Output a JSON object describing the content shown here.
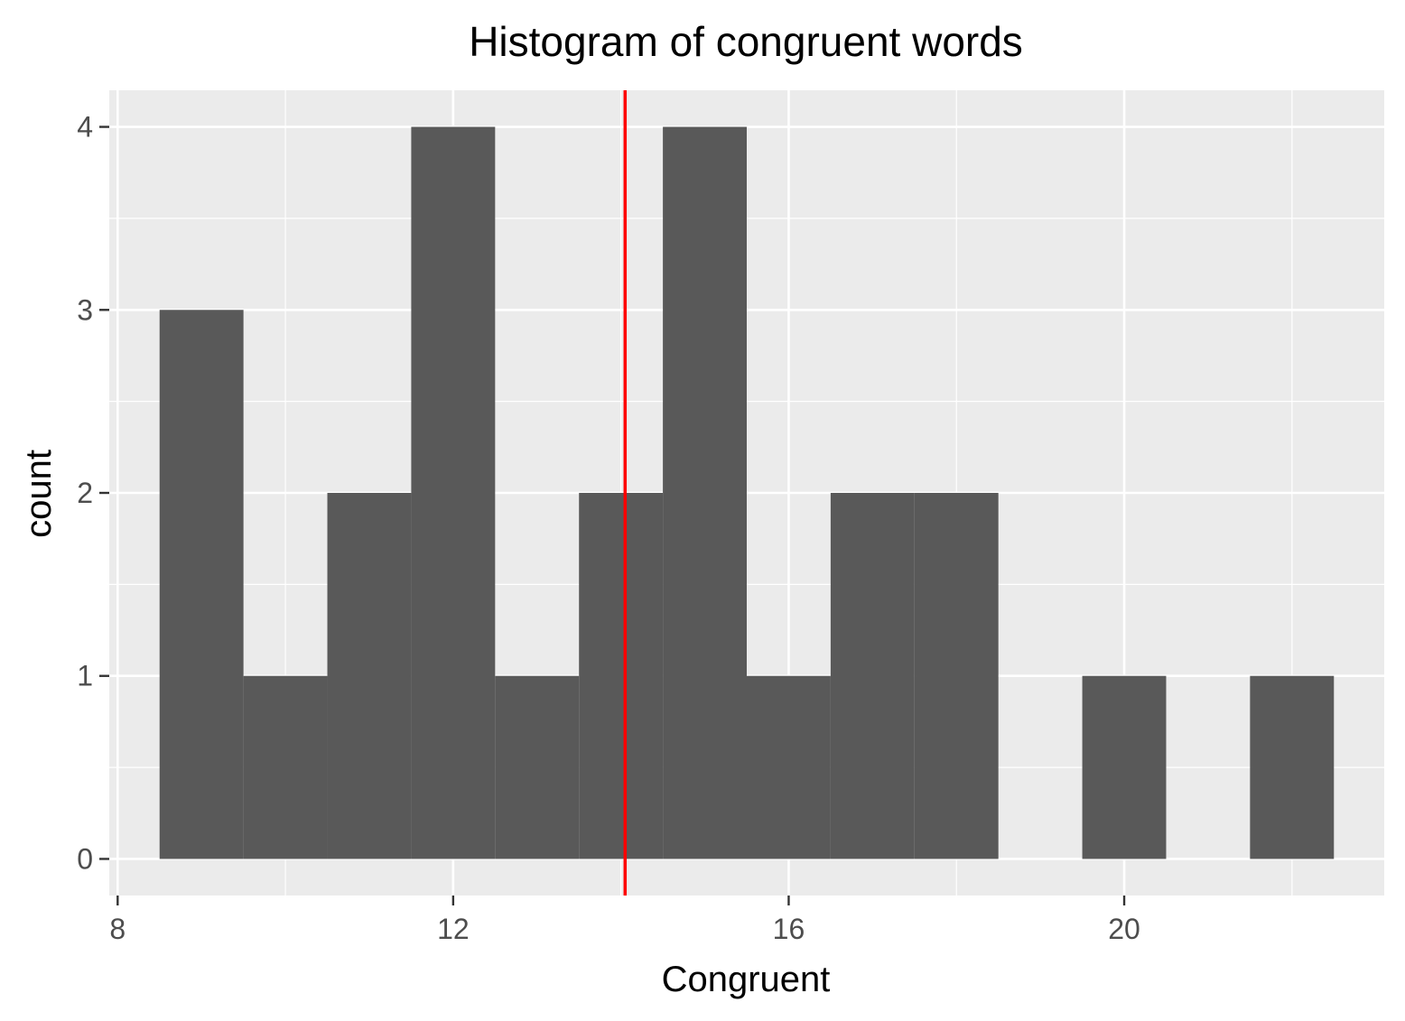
{
  "chart_data": {
    "type": "bar",
    "subtype": "histogram",
    "title": "Histogram of congruent words",
    "xlabel": "Congruent",
    "ylabel": "count",
    "xlim": [
      7.9,
      23.1
    ],
    "ylim": [
      -0.2,
      4.2
    ],
    "x_ticks": [
      8,
      12,
      16,
      20
    ],
    "y_ticks": [
      0,
      1,
      2,
      3,
      4
    ],
    "bin_width": 1,
    "bins": [
      {
        "x0": 8.5,
        "x1": 9.5,
        "count": 3
      },
      {
        "x0": 9.5,
        "x1": 10.5,
        "count": 1
      },
      {
        "x0": 10.5,
        "x1": 11.5,
        "count": 2
      },
      {
        "x0": 11.5,
        "x1": 12.5,
        "count": 4
      },
      {
        "x0": 12.5,
        "x1": 13.5,
        "count": 1
      },
      {
        "x0": 13.5,
        "x1": 14.5,
        "count": 2
      },
      {
        "x0": 14.5,
        "x1": 15.5,
        "count": 4
      },
      {
        "x0": 15.5,
        "x1": 16.5,
        "count": 1
      },
      {
        "x0": 16.5,
        "x1": 17.5,
        "count": 2
      },
      {
        "x0": 17.5,
        "x1": 18.5,
        "count": 2
      },
      {
        "x0": 18.5,
        "x1": 19.5,
        "count": 0
      },
      {
        "x0": 19.5,
        "x1": 20.5,
        "count": 1
      },
      {
        "x0": 20.5,
        "x1": 21.5,
        "count": 0
      },
      {
        "x0": 21.5,
        "x1": 22.5,
        "count": 1
      }
    ],
    "reference_line": {
      "x": 14.05,
      "color": "#ff0000"
    },
    "bar_color": "#595959",
    "panel_background": "#ebebeb",
    "grid": true,
    "legend": "none"
  }
}
